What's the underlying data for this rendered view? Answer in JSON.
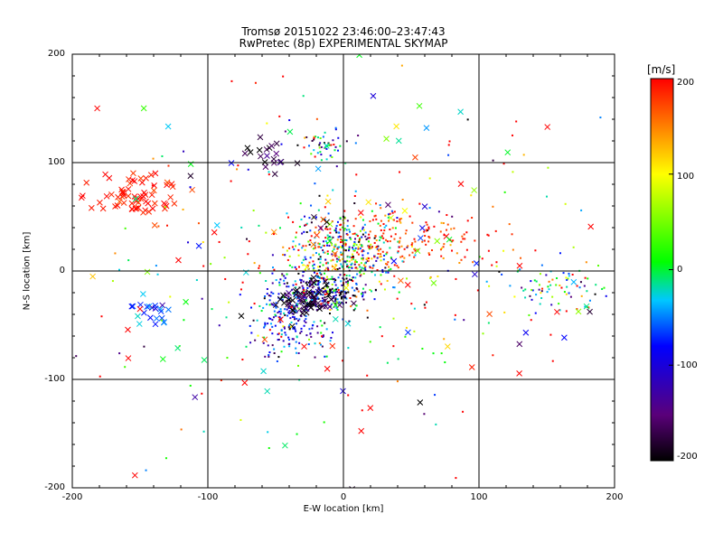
{
  "chart_data": {
    "type": "scatter",
    "title": "Tromsø 20151022 23:46:00–23:47:43",
    "subtitle": "RwPretec (8p) EXPERIMENTAL SKYMAP",
    "xlabel": "E-W location [km]",
    "ylabel": "N-S location [km]",
    "xlim": [
      -200,
      200
    ],
    "ylim": [
      -200,
      200
    ],
    "x_ticks": [
      "-200",
      "-100",
      "0",
      "100",
      "200"
    ],
    "y_ticks": [
      "-200",
      "-100",
      "0",
      "100",
      "200"
    ],
    "grid": true,
    "grid_lines_x": [
      -100,
      0,
      100
    ],
    "grid_lines_y": [
      -100,
      0,
      100
    ],
    "marker_types": [
      "cross",
      "dot"
    ],
    "colorbar": {
      "label": "[m/s]",
      "range": [
        -200,
        200
      ],
      "ticks": [
        "200",
        "100",
        "0",
        "-100",
        "-200"
      ],
      "colormap": [
        "#000000",
        "#5a007a",
        "#0000ff",
        "#00c8ff",
        "#00ff00",
        "#ffff00",
        "#ff0000"
      ]
    },
    "clusters": [
      {
        "x": 0,
        "y": 15,
        "sx": 20,
        "sy": 18,
        "n": 420,
        "v": 40,
        "vs": 140,
        "marker": "dot"
      },
      {
        "x": 45,
        "y": 25,
        "sx": 38,
        "sy": 14,
        "n": 180,
        "v": 185,
        "vs": 20,
        "marker": "dot"
      },
      {
        "x": -40,
        "y": -45,
        "sx": 14,
        "sy": 18,
        "n": 220,
        "v": -60,
        "vs": 60,
        "marker": "dot"
      },
      {
        "x": -15,
        "y": -20,
        "sx": 15,
        "sy": 8,
        "n": 200,
        "v": -120,
        "vs": 110,
        "marker": "dot"
      },
      {
        "x": -25,
        "y": -25,
        "sx": 12,
        "sy": 8,
        "n": 60,
        "v": -180,
        "vs": 30,
        "marker": "cross"
      },
      {
        "x": -150,
        "y": 70,
        "sx": 18,
        "sy": 12,
        "n": 70,
        "v": 195,
        "vs": 10,
        "marker": "cross"
      },
      {
        "x": -140,
        "y": -38,
        "sx": 7,
        "sy": 7,
        "n": 22,
        "v": -50,
        "vs": 40,
        "marker": "cross"
      },
      {
        "x": -15,
        "y": 118,
        "sx": 10,
        "sy": 7,
        "n": 50,
        "v": 0,
        "vs": 150,
        "marker": "dot"
      },
      {
        "x": -50,
        "y": 105,
        "sx": 9,
        "sy": 7,
        "n": 20,
        "v": -160,
        "vs": 40,
        "marker": "cross"
      },
      {
        "x": 160,
        "y": -15,
        "sx": 25,
        "sy": 12,
        "n": 80,
        "v": 40,
        "vs": 120,
        "marker": "dot"
      },
      {
        "x": 0,
        "y": 0,
        "sx": 95,
        "sy": 85,
        "n": 260,
        "v": 120,
        "vs": 150,
        "marker": "dot"
      },
      {
        "x": 0,
        "y": 10,
        "sx": 90,
        "sy": 80,
        "n": 110,
        "v": 100,
        "vs": 150,
        "marker": "cross"
      }
    ]
  }
}
